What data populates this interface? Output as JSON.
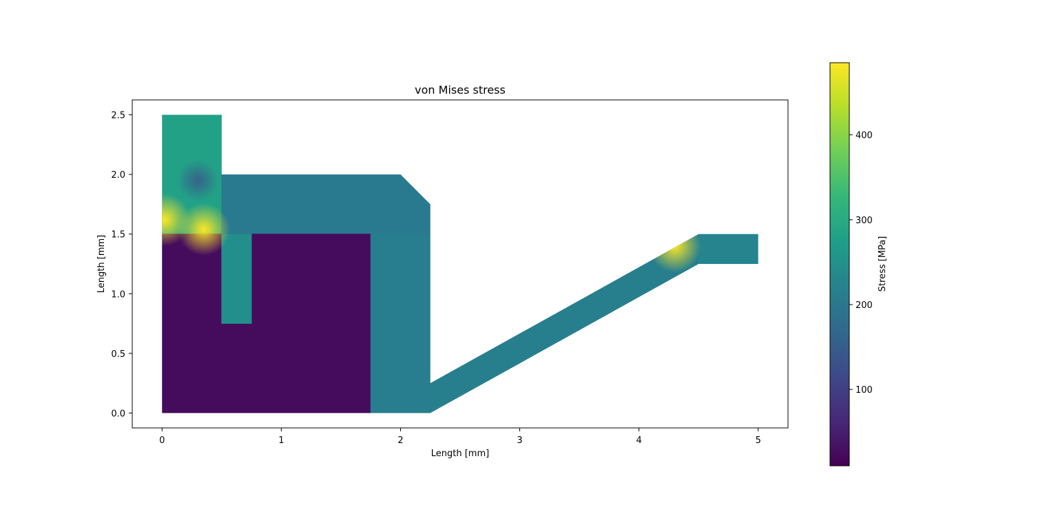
{
  "chart_data": {
    "type": "heatmap",
    "title": "von Mises stress",
    "xlabel": "Length [mm]",
    "ylabel": "Length [mm]",
    "xlim": [
      -0.25,
      5.25
    ],
    "ylim": [
      -0.125,
      2.625
    ],
    "xticks": [
      0,
      1,
      2,
      3,
      4,
      5
    ],
    "xtick_labels": [
      "0",
      "1",
      "2",
      "3",
      "4",
      "5"
    ],
    "yticks": [
      0.0,
      0.5,
      1.0,
      1.5,
      2.0,
      2.5
    ],
    "ytick_labels": [
      "0.0",
      "0.5",
      "1.0",
      "1.5",
      "2.0",
      "2.5"
    ],
    "grid": false,
    "colormap": "viridis",
    "colorbar": {
      "label": "Stress [MPa]",
      "range": [
        10,
        485
      ],
      "ticks": [
        100,
        200,
        300,
        400
      ],
      "tick_labels": [
        "100",
        "200",
        "300",
        "400"
      ]
    },
    "regions": [
      {
        "name": "upper-left tab",
        "polygon": [
          [
            0,
            1.5
          ],
          [
            0.5,
            1.5
          ],
          [
            0.5,
            2.5
          ],
          [
            0,
            2.5
          ]
        ],
        "stress": 280
      },
      {
        "name": "upper frame",
        "polygon": [
          [
            0,
            1.5
          ],
          [
            2.25,
            1.5
          ],
          [
            2.25,
            1.75
          ],
          [
            2,
            2
          ],
          [
            0.5,
            2
          ],
          [
            0.5,
            1.5
          ]
        ],
        "stress": 205
      },
      {
        "name": "lower-left block",
        "polygon": [
          [
            0,
            0
          ],
          [
            1.75,
            0
          ],
          [
            1.75,
            1.5
          ],
          [
            0,
            1.5
          ]
        ],
        "stress": 25
      },
      {
        "name": "vertical stub",
        "polygon": [
          [
            0.5,
            0.75
          ],
          [
            0.75,
            0.75
          ],
          [
            0.75,
            1.5
          ],
          [
            0.5,
            1.5
          ]
        ],
        "stress": 245
      },
      {
        "name": "right column",
        "polygon": [
          [
            1.75,
            0
          ],
          [
            2.25,
            0
          ],
          [
            2.25,
            1.5
          ],
          [
            1.75,
            1.5
          ]
        ],
        "stress": 210
      },
      {
        "name": "inclined arm",
        "polygon": [
          [
            2.25,
            0
          ],
          [
            2.25,
            0.25
          ],
          [
            4.5,
            1.5
          ],
          [
            4.5,
            1.25
          ]
        ],
        "stress": 215
      },
      {
        "name": "right tab",
        "polygon": [
          [
            4.5,
            1.25
          ],
          [
            5,
            1.25
          ],
          [
            5,
            1.5
          ],
          [
            4.5,
            1.5
          ]
        ],
        "stress": 225
      }
    ],
    "hotspots": [
      {
        "x": 0.02,
        "y": 1.62,
        "stress": 480
      },
      {
        "x": 0.35,
        "y": 1.54,
        "stress": 450
      },
      {
        "x": 0.3,
        "y": 1.95,
        "stress": 150
      },
      {
        "x": 4.3,
        "y": 1.4,
        "stress": 380
      }
    ]
  }
}
